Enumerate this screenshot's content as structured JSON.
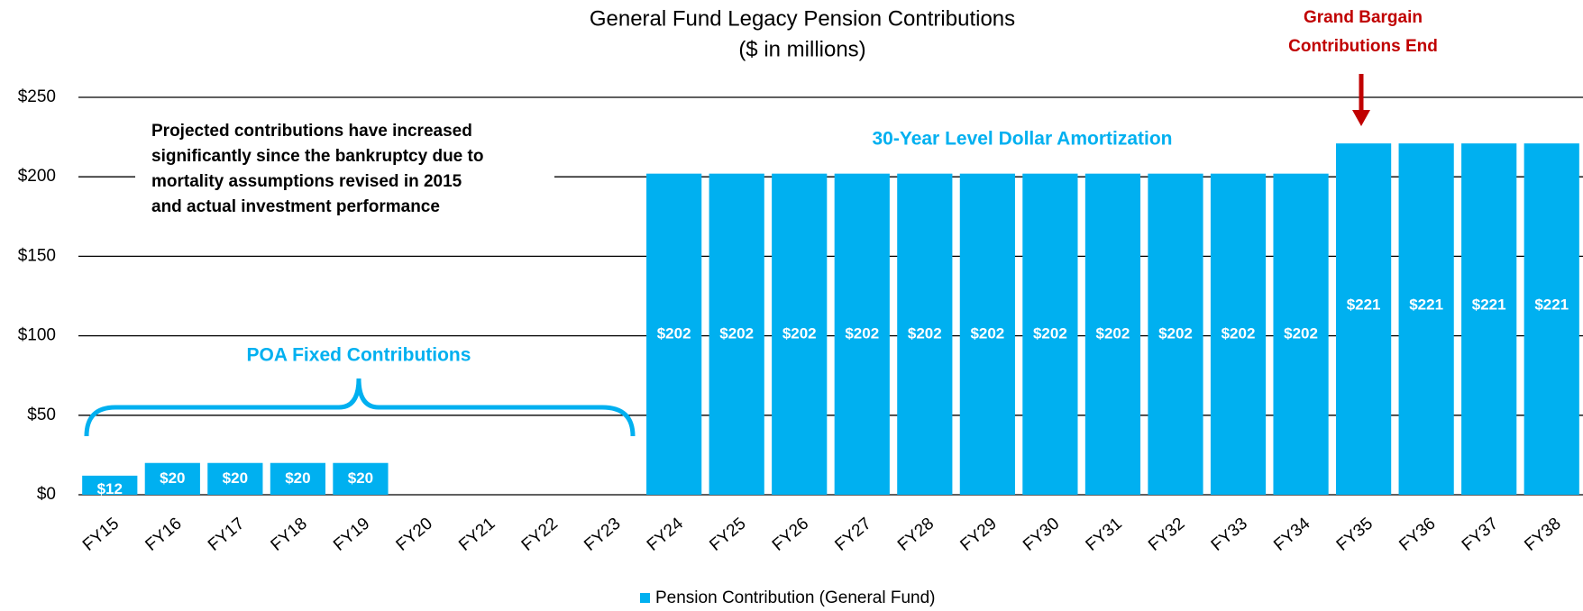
{
  "chart_data": {
    "type": "bar",
    "title": "General Fund Legacy Pension Contributions",
    "subtitle": "($ in millions)",
    "categories": [
      "FY15",
      "FY16",
      "FY17",
      "FY18",
      "FY19",
      "FY20",
      "FY21",
      "FY22",
      "FY23",
      "FY24",
      "FY25",
      "FY26",
      "FY27",
      "FY28",
      "FY29",
      "FY30",
      "FY31",
      "FY32",
      "FY33",
      "FY34",
      "FY35",
      "FY36",
      "FY37",
      "FY38"
    ],
    "series": [
      {
        "name": "Pension Contribution (General Fund)",
        "color": "#00b0f0",
        "values": [
          12,
          20,
          20,
          20,
          20,
          null,
          null,
          null,
          null,
          202,
          202,
          202,
          202,
          202,
          202,
          202,
          202,
          202,
          202,
          202,
          221,
          221,
          221,
          221
        ],
        "value_labels": [
          "$12",
          "$20",
          "$20",
          "$20",
          "$20",
          null,
          null,
          null,
          null,
          "$202",
          "$202",
          "$202",
          "$202",
          "$202",
          "$202",
          "$202",
          "$202",
          "$202",
          "$202",
          "$202",
          "$221",
          "$221",
          "$221",
          "$221"
        ]
      }
    ],
    "ylim": [
      0,
      250
    ],
    "yticks": [
      {
        "value": 0,
        "label": "$0"
      },
      {
        "value": 50,
        "label": "$50"
      },
      {
        "value": 100,
        "label": "$100"
      },
      {
        "value": 150,
        "label": "$150"
      },
      {
        "value": 200,
        "label": "$200"
      },
      {
        "value": 250,
        "label": "$250"
      }
    ],
    "grid": true,
    "legend": "bottom",
    "annotations": {
      "note": [
        "Projected contributions have increased",
        "significantly since the bankruptcy due to",
        "mortality assumptions revised in 2015",
        "and actual investment performance"
      ],
      "poa": "POA Fixed Contributions",
      "amortization": "30-Year Level Dollar Amortization",
      "grand_bargain": [
        "Grand Bargain",
        "Contributions End"
      ]
    }
  }
}
